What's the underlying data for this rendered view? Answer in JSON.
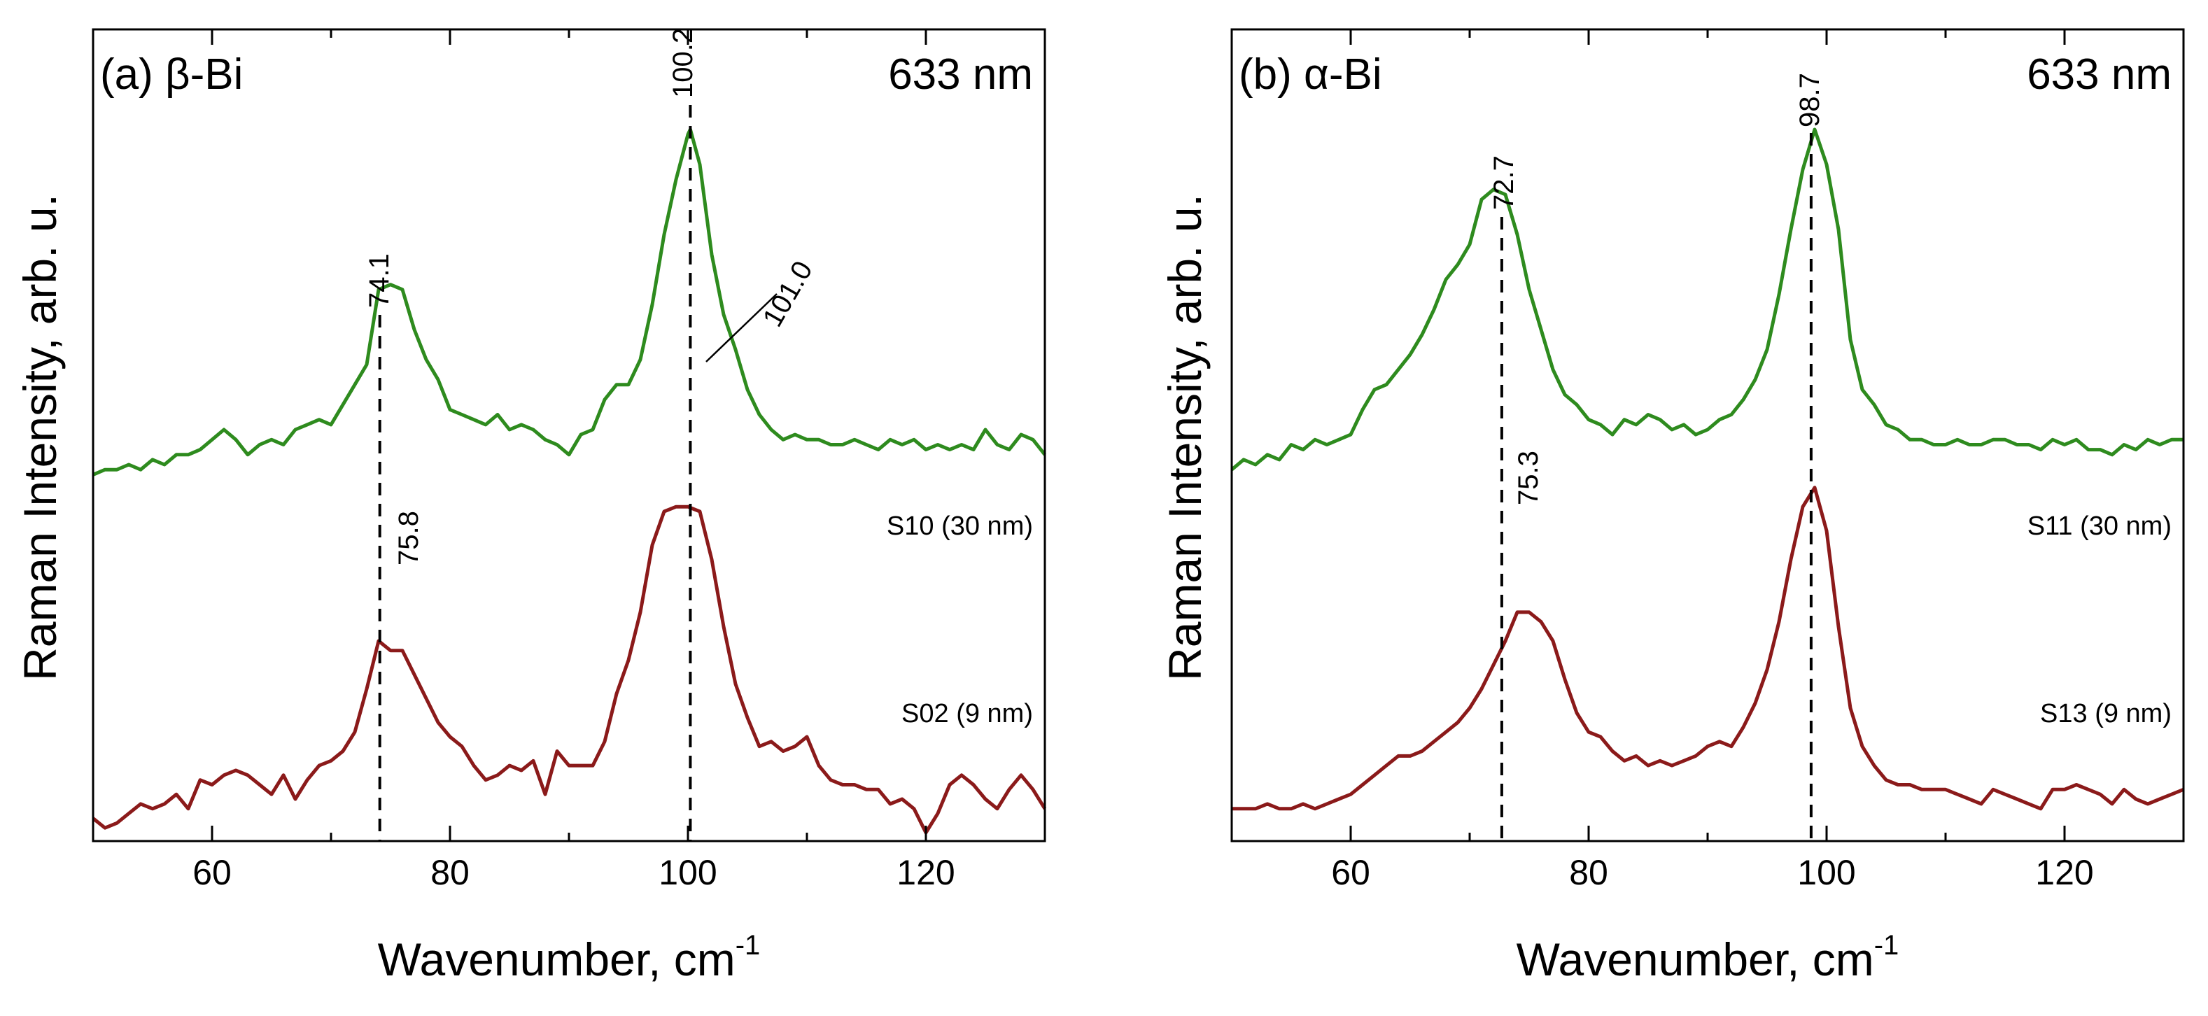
{
  "figure": {
    "xlabel_text": "Wavenumber, cm",
    "xlabel_superscript": "-1",
    "ylabel": "Raman Intensity, arb. u."
  },
  "chart_data": [
    {
      "type": "line",
      "panel_label": "(a) β-Bi",
      "annotation": "633 nm",
      "xlabel": "Wavenumber, cm-1",
      "ylabel": "Raman Intensity, arb. u.",
      "xlim": [
        50,
        130
      ],
      "ylim": [
        0,
        100
      ],
      "xticks": [
        60,
        80,
        100,
        120
      ],
      "xtick_labels": [
        "60",
        "80",
        "100",
        "120"
      ],
      "yticks_shown": false,
      "series": [
        {
          "name": "S10 (30 nm)",
          "color": "#2e8b1e",
          "x": [
            50,
            51,
            52,
            53,
            54,
            55,
            56,
            57,
            58,
            59,
            60,
            61,
            62,
            63,
            64,
            65,
            66,
            67,
            68,
            69,
            70,
            71,
            72,
            73,
            74,
            75,
            76,
            77,
            78,
            79,
            80,
            81,
            82,
            83,
            84,
            85,
            86,
            87,
            88,
            89,
            90,
            91,
            92,
            93,
            94,
            95,
            96,
            97,
            98,
            99,
            100,
            100.2,
            101,
            102,
            103,
            104,
            105,
            106,
            107,
            108,
            109,
            110,
            111,
            112,
            113,
            114,
            115,
            116,
            117,
            118,
            119,
            120,
            121,
            122,
            123,
            124,
            125,
            126,
            127,
            128,
            129,
            130
          ],
          "y": [
            31,
            32,
            32,
            33,
            32,
            34,
            33,
            35,
            35,
            36,
            38,
            40,
            38,
            35,
            37,
            38,
            37,
            40,
            41,
            42,
            41,
            45,
            49,
            53,
            68,
            69,
            68,
            60,
            54,
            50,
            44,
            43,
            42,
            41,
            43,
            40,
            41,
            40,
            38,
            37,
            35,
            39,
            40,
            46,
            49,
            49,
            54,
            65,
            79,
            90,
            99,
            100,
            93,
            75,
            63,
            56,
            48,
            43,
            40,
            38,
            39,
            38,
            38,
            37,
            37,
            38,
            37,
            36,
            38,
            37,
            38,
            36,
            37,
            36,
            37,
            36,
            40,
            37,
            36,
            39,
            38,
            35
          ]
        },
        {
          "name": "S02 (9 nm)",
          "color": "#8b1a1a",
          "x": [
            50,
            51,
            52,
            53,
            54,
            55,
            56,
            57,
            58,
            59,
            60,
            61,
            62,
            63,
            64,
            65,
            66,
            67,
            68,
            69,
            70,
            71,
            72,
            73,
            74,
            75,
            76,
            77,
            78,
            79,
            80,
            81,
            82,
            83,
            84,
            85,
            86,
            87,
            88,
            89,
            90,
            91,
            92,
            93,
            94,
            95,
            96,
            97,
            98,
            99,
            100,
            101,
            102,
            103,
            104,
            105,
            106,
            107,
            108,
            109,
            110,
            111,
            112,
            113,
            114,
            115,
            116,
            117,
            118,
            119,
            120,
            121,
            122,
            123,
            124,
            125,
            126,
            127,
            128,
            129,
            130
          ],
          "y": [
            3,
            1,
            2,
            4,
            6,
            5,
            6,
            8,
            5,
            11,
            10,
            12,
            13,
            12,
            10,
            8,
            12,
            7,
            11,
            14,
            15,
            17,
            21,
            30,
            40,
            38,
            38,
            33,
            28,
            23,
            20,
            18,
            14,
            11,
            12,
            14,
            13,
            15,
            8,
            17,
            14,
            14,
            14,
            19,
            29,
            36,
            46,
            60,
            67,
            68,
            68,
            67,
            57,
            43,
            31,
            24,
            18,
            19,
            17,
            18,
            20,
            14,
            11,
            10,
            10,
            9,
            9,
            6,
            7,
            5,
            0,
            4,
            10,
            12,
            10,
            7,
            5,
            9,
            12,
            9,
            5
          ]
        }
      ],
      "peak_labels": [
        {
          "text": "74.1",
          "x": 74.1
        },
        {
          "text": "100.2",
          "x": 100.2
        },
        {
          "text": "101.0",
          "x": 101.0
        },
        {
          "text": "75.8",
          "x": 75.8
        }
      ],
      "dashed_lines_at": [
        74.1,
        100.2
      ]
    },
    {
      "type": "line",
      "panel_label": "(b) α-Bi",
      "annotation": "633 nm",
      "xlabel": "Wavenumber, cm-1",
      "ylabel": "Raman Intensity, arb. u.",
      "xlim": [
        50,
        130
      ],
      "ylim": [
        0,
        100
      ],
      "xticks": [
        60,
        80,
        100,
        120
      ],
      "xtick_labels": [
        "60",
        "80",
        "100",
        "120"
      ],
      "yticks_shown": false,
      "series": [
        {
          "name": "S11 (30 nm)",
          "color": "#2e8b1e",
          "x": [
            50,
            51,
            52,
            53,
            54,
            55,
            56,
            57,
            58,
            59,
            60,
            61,
            62,
            63,
            64,
            65,
            66,
            67,
            68,
            69,
            70,
            71,
            72,
            73,
            74,
            75,
            76,
            77,
            78,
            79,
            80,
            81,
            82,
            83,
            84,
            85,
            86,
            87,
            88,
            89,
            90,
            91,
            92,
            93,
            94,
            95,
            96,
            97,
            98,
            99,
            100,
            101,
            102,
            103,
            104,
            105,
            106,
            107,
            108,
            109,
            110,
            111,
            112,
            113,
            114,
            115,
            116,
            117,
            118,
            119,
            120,
            121,
            122,
            123,
            124,
            125,
            126,
            127,
            128,
            129,
            130
          ],
          "y": [
            32,
            34,
            33,
            35,
            34,
            37,
            36,
            38,
            37,
            38,
            39,
            44,
            48,
            49,
            52,
            55,
            59,
            64,
            70,
            73,
            77,
            86,
            88,
            87,
            79,
            68,
            60,
            52,
            47,
            45,
            42,
            41,
            39,
            42,
            41,
            43,
            42,
            40,
            41,
            39,
            40,
            42,
            43,
            46,
            50,
            56,
            67,
            80,
            92,
            100,
            93,
            80,
            58,
            48,
            45,
            41,
            40,
            38,
            38,
            37,
            37,
            38,
            37,
            37,
            38,
            38,
            37,
            37,
            36,
            38,
            37,
            38,
            36,
            36,
            35,
            37,
            36,
            38,
            37,
            38,
            38
          ]
        },
        {
          "name": "S13 (9 nm)",
          "color": "#8b1a1a",
          "x": [
            50,
            51,
            52,
            53,
            54,
            55,
            56,
            57,
            58,
            59,
            60,
            61,
            62,
            63,
            64,
            65,
            66,
            67,
            68,
            69,
            70,
            71,
            72,
            73,
            74,
            75,
            76,
            77,
            78,
            79,
            80,
            81,
            82,
            83,
            84,
            85,
            86,
            87,
            88,
            89,
            90,
            91,
            92,
            93,
            94,
            95,
            96,
            97,
            98,
            99,
            100,
            101,
            102,
            103,
            104,
            105,
            106,
            107,
            108,
            109,
            110,
            111,
            112,
            113,
            114,
            115,
            116,
            117,
            118,
            119,
            120,
            121,
            122,
            123,
            124,
            125,
            126,
            127,
            128,
            129,
            130
          ],
          "y": [
            5,
            5,
            5,
            6,
            5,
            5,
            6,
            5,
            6,
            7,
            8,
            10,
            12,
            14,
            16,
            16,
            17,
            19,
            21,
            23,
            26,
            30,
            35,
            40,
            46,
            46,
            44,
            40,
            32,
            25,
            21,
            20,
            17,
            15,
            16,
            14,
            15,
            14,
            15,
            16,
            18,
            19,
            18,
            22,
            27,
            34,
            44,
            57,
            68,
            72,
            63,
            43,
            26,
            18,
            14,
            11,
            10,
            10,
            9,
            9,
            9,
            8,
            7,
            6,
            9,
            8,
            7,
            6,
            5,
            9,
            9,
            10,
            9,
            8,
            6,
            9,
            7,
            6,
            7,
            8,
            9
          ]
        }
      ],
      "peak_labels": [
        {
          "text": "72.7",
          "x": 72.7
        },
        {
          "text": "98.7",
          "x": 98.7
        },
        {
          "text": "75.3",
          "x": 75.3
        }
      ],
      "dashed_lines_at": [
        72.7,
        98.7
      ]
    }
  ]
}
